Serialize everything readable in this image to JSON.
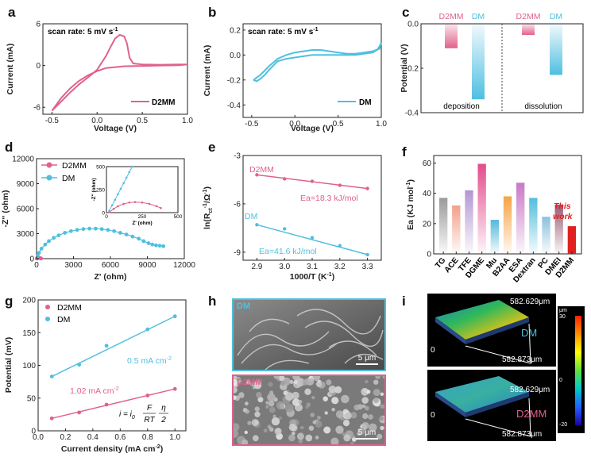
{
  "colors": {
    "pink": "#e0628a",
    "blue": "#4fbfe0",
    "red": "#e02020"
  },
  "panels": {
    "a": {
      "label": "a",
      "annotation": "scan rate: 5 mV s",
      "annotation_sup": "-1",
      "legend": "D2MM",
      "xlabel": "Voltage (V)",
      "ylabel": "Current (mA)"
    },
    "b": {
      "label": "b",
      "annotation": "scan rate: 5 mV s",
      "annotation_sup": "-1",
      "legend": "DM",
      "xlabel": "Voltage (V)",
      "ylabel": "Current (mA)"
    },
    "c": {
      "label": "c",
      "ylabel": "Potential (V)",
      "group1": "deposition",
      "group2": "dissolution"
    },
    "d": {
      "label": "d",
      "ylabel": "-Z'' (ohm)",
      "xlabel": "Z' (ohm)",
      "inset_ylabel": "-Z'' (ohm)",
      "inset_xlabel": "Z' (ohm)"
    },
    "e": {
      "label": "e",
      "ylabel": "ln(R",
      "ylabel_sub": "ct",
      "ylabel_sup": "-1",
      "ylabel_tail": "/Ω",
      "ylabel_tail_sup": "-1",
      "ylabel_end": ")",
      "xlabel": "1000/T (K",
      "xlabel_sup": "-1",
      "xlabel_end": ")",
      "s1_label": "D2MM",
      "s1_ea": "Ea=18.3 kJ/mol",
      "s2_label": "DM",
      "s2_ea": "Ea=41.6 kJ/mol"
    },
    "f": {
      "label": "f",
      "ylabel": "Ea (KJ mol",
      "ylabel_sup": "-1",
      "ylabel_end": ")",
      "this_work_1": "This",
      "this_work_2": "work"
    },
    "g": {
      "label": "g",
      "ylabel": "Potential (mV)",
      "xlabel": "Current density (mA cm",
      "xlabel_sup": "-2",
      "xlabel_end": ")",
      "blue_note": "0.5 mA cm",
      "blue_note_sup": "-2",
      "pink_note": "1.02 mA cm",
      "pink_note_sup": "-2",
      "eq_lhs": "i = i",
      "eq_sub": "0",
      "eq_num": "F",
      "eq_den": "RT",
      "eq_num2": "η",
      "eq_den2": "2"
    },
    "h": {
      "label": "h",
      "top_tag": "DM",
      "bottom_tag": "D2MM",
      "scale_top": "5 μm",
      "scale_bottom": "5 μm"
    },
    "i": {
      "label": "i",
      "top_tag": "DM",
      "bottom_tag": "D2MM",
      "dim_y": "582.629μm",
      "dim_x": "582.873μm",
      "origin": "0",
      "cb_unit": "μm",
      "cb_top": "30",
      "cb_mid": "0",
      "cb_bot": "-20"
    }
  },
  "chart_data": [
    {
      "id": "a",
      "type": "line",
      "title": "",
      "xlabel": "Voltage (V)",
      "ylabel": "Current (mA)",
      "xlim": [
        -0.6,
        1.0
      ],
      "ylim": [
        -7,
        6
      ],
      "xticks": [
        "-0.5",
        "0.0",
        "0.5",
        "1.0"
      ],
      "yticks": [
        "-6",
        "0",
        "6"
      ],
      "series": [
        {
          "name": "D2MM",
          "x": [
            -0.5,
            -0.4,
            -0.3,
            -0.2,
            -0.1,
            0.0,
            0.1,
            0.15,
            0.2,
            0.25,
            0.3,
            0.33,
            0.36,
            0.4,
            0.5,
            0.7,
            0.9,
            1.0,
            0.9,
            0.7,
            0.5,
            0.3,
            0.1,
            0.0,
            -0.1,
            -0.2,
            -0.3,
            -0.4,
            -0.5
          ],
          "y": [
            -6.5,
            -5.2,
            -3.9,
            -2.7,
            -1.7,
            -0.6,
            1.4,
            2.7,
            3.9,
            4.4,
            4.2,
            3.2,
            1.1,
            0.3,
            0.15,
            0.12,
            0.15,
            0.15,
            0.05,
            0.0,
            -0.05,
            -0.1,
            -0.35,
            -0.8,
            -1.4,
            -2.2,
            -3.3,
            -4.7,
            -6.5
          ]
        }
      ]
    },
    {
      "id": "b",
      "type": "line",
      "title": "",
      "xlabel": "Voltage (V)",
      "ylabel": "Current (mA)",
      "xlim": [
        -0.6,
        1.0
      ],
      "ylim": [
        -0.5,
        0.25
      ],
      "xticks": [
        "-0.5",
        "0.0",
        "0.5",
        "1.0"
      ],
      "yticks": [
        "0.2",
        "0.0",
        "-0.2",
        "-0.4"
      ],
      "series": [
        {
          "name": "DM",
          "x": [
            -0.48,
            -0.44,
            -0.4,
            -0.35,
            -0.3,
            -0.2,
            -0.1,
            0.0,
            0.1,
            0.2,
            0.3,
            0.4,
            0.5,
            0.6,
            0.7,
            0.8,
            0.9,
            0.95,
            0.98,
            1.0,
            0.98,
            0.9,
            0.8,
            0.7,
            0.6,
            0.5,
            0.4,
            0.3,
            0.2,
            0.1,
            0.0,
            -0.1,
            -0.2,
            -0.3,
            -0.4,
            -0.48
          ],
          "y": [
            -0.2,
            -0.21,
            -0.19,
            -0.16,
            -0.12,
            -0.05,
            -0.03,
            -0.02,
            -0.01,
            0.0,
            0.0,
            0.0,
            0.0,
            0.0,
            0.0,
            0.01,
            0.02,
            0.04,
            0.07,
            0.1,
            0.05,
            0.03,
            0.02,
            0.01,
            0.01,
            0.02,
            0.03,
            0.04,
            0.04,
            0.03,
            0.02,
            0.0,
            -0.03,
            -0.09,
            -0.16,
            -0.2
          ]
        }
      ]
    },
    {
      "id": "c",
      "type": "bar",
      "ylabel": "Potential (V)",
      "ylim": [
        -0.4,
        0.0
      ],
      "yticks": [
        "0.0",
        "-0.2",
        "-0.4"
      ],
      "categories": [
        "D2MM",
        "DM",
        "D2MM",
        "DM"
      ],
      "groups": [
        "deposition",
        "deposition",
        "dissolution",
        "dissolution"
      ],
      "values": [
        -0.11,
        -0.34,
        -0.05,
        -0.23
      ]
    },
    {
      "id": "d",
      "type": "scatter",
      "xlabel": "Z' (ohm)",
      "ylabel": "-Z'' (ohm)",
      "xlim": [
        0,
        12000
      ],
      "ylim": [
        0,
        12000
      ],
      "xticks": [
        "0",
        "3000",
        "6000",
        "9000",
        "12000"
      ],
      "yticks": [
        "0",
        "3000",
        "6000",
        "9000",
        "12000"
      ],
      "series": [
        {
          "name": "D2MM",
          "x": [
            20,
            60,
            100,
            150,
            200,
            260,
            320,
            370
          ],
          "y": [
            10,
            40,
            70,
            85,
            80,
            70,
            45,
            20
          ]
        },
        {
          "name": "DM",
          "x": [
            100,
            200,
            400,
            700,
            1000,
            1400,
            1800,
            2300,
            2800,
            3300,
            3800,
            4300,
            4800,
            5300,
            5800,
            6300,
            6800,
            7300,
            7800,
            8300,
            8700,
            9100,
            9400,
            9700,
            10000,
            10300
          ],
          "y": [
            300,
            700,
            1200,
            1700,
            2100,
            2500,
            2800,
            3100,
            3300,
            3450,
            3550,
            3600,
            3600,
            3550,
            3450,
            3300,
            3100,
            2900,
            2650,
            2400,
            2100,
            1850,
            1700,
            1600,
            1550,
            1500
          ]
        }
      ],
      "inset": {
        "xlim": [
          0,
          500
        ],
        "ylim": [
          0,
          500
        ],
        "xticks": [
          "0",
          "250",
          "500"
        ],
        "yticks": [
          "0",
          "250",
          "500"
        ],
        "series": [
          {
            "name": "D2MM",
            "x": [
              20,
              50,
              80,
              120,
              160,
              200,
              250,
              300,
              350,
              380
            ],
            "y": [
              5,
              40,
              70,
              95,
              110,
              115,
              110,
              95,
              70,
              50
            ]
          },
          {
            "name": "DM",
            "x": [
              20,
              40,
              60,
              80,
              100,
              120,
              140,
              160,
              180
            ],
            "y": [
              20,
              80,
              140,
              200,
              260,
              320,
              380,
              440,
              500
            ]
          }
        ]
      }
    },
    {
      "id": "e",
      "type": "line",
      "xlabel": "1000/T (K-1)",
      "ylabel": "ln(Rct-1/Ω-1)",
      "xlim": [
        2.85,
        3.35
      ],
      "ylim": [
        -9.5,
        -3
      ],
      "xticks": [
        "2.9",
        "3.0",
        "3.1",
        "3.2",
        "3.3"
      ],
      "yticks": [
        "-3",
        "-6",
        "-9"
      ],
      "series": [
        {
          "name": "D2MM",
          "x": [
            2.9,
            3.0,
            3.1,
            3.2,
            3.3
          ],
          "y": [
            -4.2,
            -4.45,
            -4.6,
            -4.85,
            -5.05
          ]
        },
        {
          "name": "DM",
          "x": [
            2.9,
            3.0,
            3.1,
            3.2,
            3.3
          ],
          "y": [
            -7.3,
            -7.55,
            -8.1,
            -8.6,
            -9.15
          ]
        }
      ]
    },
    {
      "id": "f",
      "type": "bar",
      "ylabel": "Ea (KJ mol-1)",
      "ylim": [
        0,
        65
      ],
      "yticks": [
        "0",
        "20",
        "40",
        "60"
      ],
      "categories": [
        "TG",
        "ACE",
        "TFE",
        "DGME",
        "Mu",
        "B2AA",
        "ESA",
        "Dextran",
        "PC",
        "DMEI",
        "D2MM"
      ],
      "values": [
        37,
        32,
        42,
        59.5,
        22.5,
        38,
        47,
        37,
        24.5,
        32.5,
        18.3
      ],
      "bar_colors": [
        "#9a9a9a",
        "#f2a08a",
        "#b296d4",
        "#e44b8c",
        "#54b8da",
        "#f5a344",
        "#c878c6",
        "#54bedc",
        "#8cc0dc",
        "#9a5a72",
        "#e02020"
      ]
    },
    {
      "id": "g",
      "type": "scatter",
      "xlabel": "Current density (mA cm-2)",
      "ylabel": "Potential (mV)",
      "xlim": [
        0,
        1.08
      ],
      "ylim": [
        0,
        200
      ],
      "xticks": [
        "0.0",
        "0.2",
        "0.4",
        "0.6",
        "0.8",
        "1.0"
      ],
      "yticks": [
        "0",
        "50",
        "100",
        "150",
        "200"
      ],
      "series": [
        {
          "name": "D2MM",
          "x": [
            0.1,
            0.3,
            0.5,
            0.8,
            1.0
          ],
          "y": [
            19,
            28,
            40,
            54,
            64
          ]
        },
        {
          "name": "DM",
          "x": [
            0.1,
            0.3,
            0.5,
            0.8,
            1.0
          ],
          "y": [
            83,
            101,
            130,
            155,
            175
          ]
        }
      ]
    }
  ]
}
